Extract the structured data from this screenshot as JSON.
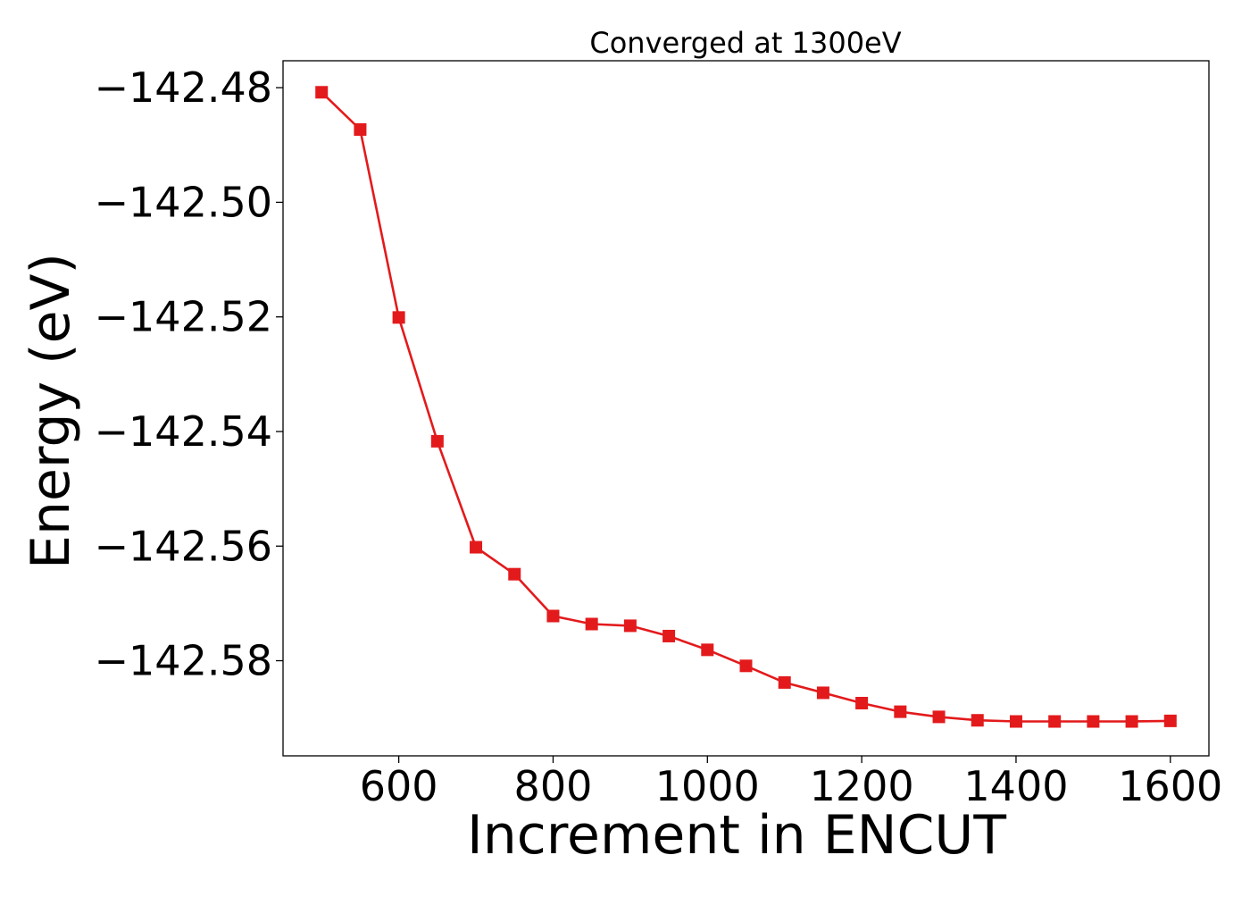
{
  "chart_data": {
    "type": "line",
    "title": "Converged at 1300eV",
    "xlabel": "Increment in ENCUT",
    "ylabel": "Energy (eV)",
    "xlim": [
      450,
      1650
    ],
    "ylim": [
      -142.5966,
      -142.4753
    ],
    "xticks": [
      600,
      800,
      1000,
      1200,
      1400,
      1600
    ],
    "xtick_labels": [
      "600",
      "800",
      "1000",
      "1200",
      "1400",
      "1600"
    ],
    "yticks": [
      -142.48,
      -142.5,
      -142.52,
      -142.54,
      -142.56,
      -142.58
    ],
    "ytick_labels": [
      "−142.48",
      "−142.50",
      "−142.52",
      "−142.54",
      "−142.56",
      "−142.58"
    ],
    "grid": false,
    "legend": "none",
    "series": [
      {
        "color": "#e31a1c",
        "marker": "square",
        "x": [
          500,
          550,
          600,
          650,
          700,
          750,
          800,
          850,
          900,
          950,
          1000,
          1050,
          1100,
          1150,
          1200,
          1250,
          1300,
          1350,
          1400,
          1450,
          1500,
          1550,
          1600
        ],
        "y": [
          -142.4808,
          -142.4873,
          -142.5201,
          -142.5417,
          -142.5602,
          -142.5649,
          -142.5722,
          -142.5736,
          -142.5739,
          -142.5757,
          -142.5781,
          -142.5809,
          -142.5838,
          -142.5856,
          -142.5874,
          -142.5889,
          -142.5898,
          -142.5904,
          -142.5906,
          -142.5906,
          -142.5906,
          -142.5906,
          -142.5905
        ]
      }
    ]
  }
}
